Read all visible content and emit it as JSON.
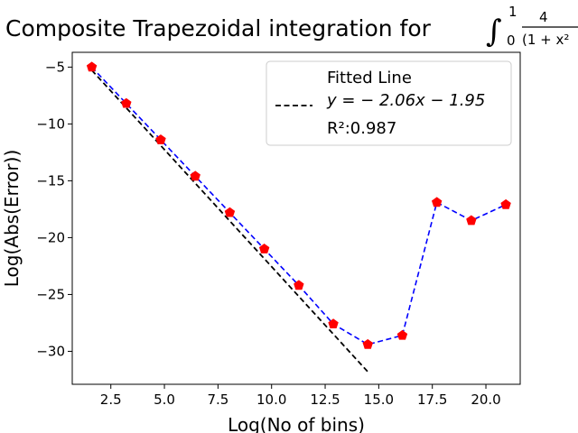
{
  "chart_data": {
    "type": "line",
    "title": "Composite Trapezoidal integration for",
    "title_math": {
      "integral_upper": "1",
      "integral_lower": "0",
      "numerator": "4",
      "denominator": "(1 + x²"
    },
    "xlabel": "Log(No of bins)",
    "ylabel": "Log(Abs(Error))",
    "xlim": [
      0.7,
      21.6
    ],
    "ylim": [
      -32.9,
      -3.7
    ],
    "x_ticks": [
      2.5,
      5.0,
      7.5,
      10.0,
      12.5,
      15.0,
      17.5,
      20.0
    ],
    "y_ticks": [
      -5,
      -10,
      -15,
      -20,
      -25,
      -30
    ],
    "x_tick_labels": [
      "2.5",
      "5.0",
      "7.5",
      "10.0",
      "12.5",
      "15.0",
      "17.5",
      "20.0"
    ],
    "y_tick_labels": [
      "−5",
      "−10",
      "−15",
      "−20",
      "−25",
      "−30"
    ],
    "grid": false,
    "legend_position": "top-right",
    "series": [
      {
        "name": "",
        "style": "dashed-line-with-pentagon-markers",
        "line_color": "#0000ff",
        "marker_color": "#ff0000",
        "x": [
          1.61,
          3.22,
          4.83,
          6.44,
          8.05,
          9.66,
          11.27,
          12.88,
          14.49,
          16.1,
          17.71,
          19.32,
          20.93
        ],
        "y": [
          -5.0,
          -8.2,
          -11.4,
          -14.6,
          -17.8,
          -21.0,
          -24.2,
          -27.6,
          -29.4,
          -28.6,
          -16.9,
          -18.5,
          -17.1
        ]
      },
      {
        "name": "Fitted Line",
        "style": "dashed",
        "line_color": "#000000",
        "x": [
          1.61,
          14.49
        ],
        "y": [
          -5.27,
          -31.8
        ]
      }
    ],
    "legend": {
      "entry_label": "Fitted Line",
      "equation": "y = − 2.06x − 1.95",
      "r2_label": "R²:0.987"
    }
  }
}
